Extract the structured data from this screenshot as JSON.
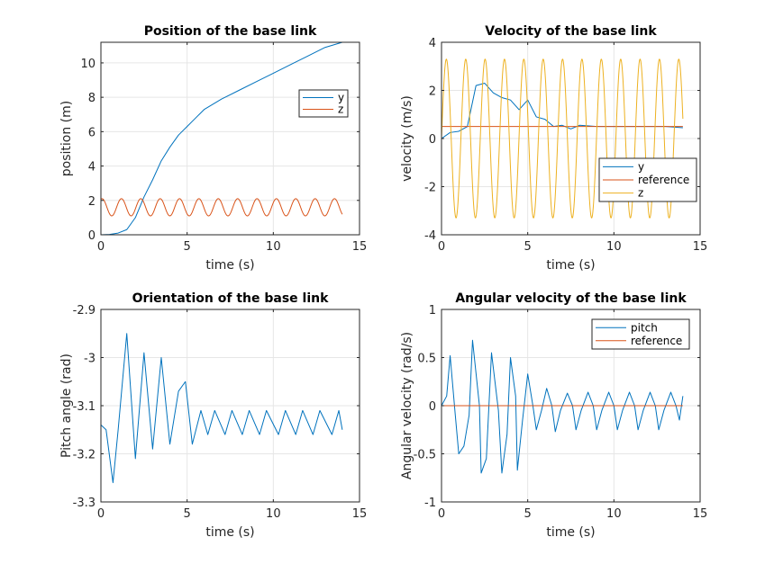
{
  "colors": {
    "blue": "#0072BD",
    "orange": "#D95319",
    "yellow": "#EDB120",
    "grid": "#e6e6e6",
    "axis": "#262626"
  },
  "chart_data": [
    {
      "type": "line",
      "title": "Position of the base link",
      "xlabel": "time (s)",
      "ylabel": "position (m)",
      "xlim": [
        0,
        15
      ],
      "ylim": [
        0,
        11.2
      ],
      "xticks": [
        0,
        5,
        10,
        15
      ],
      "yticks": [
        0,
        2,
        4,
        6,
        8,
        10
      ],
      "xtick_labels": [
        "0",
        "5",
        "10",
        "15"
      ],
      "ytick_labels": [
        "0",
        "2",
        "4",
        "6",
        "8",
        "10"
      ],
      "grid": true,
      "legend": "right",
      "series": [
        {
          "name": "y",
          "color": "#0072BD",
          "points": [
            [
              0,
              0
            ],
            [
              0.5,
              0.02
            ],
            [
              1,
              0.1
            ],
            [
              1.5,
              0.3
            ],
            [
              2,
              1.0
            ],
            [
              2.5,
              2.2
            ],
            [
              3,
              3.2
            ],
            [
              3.5,
              4.3
            ],
            [
              4,
              5.1
            ],
            [
              4.5,
              5.8
            ],
            [
              5,
              6.3
            ],
            [
              5.5,
              6.8
            ],
            [
              6,
              7.3
            ],
            [
              7,
              7.9
            ],
            [
              8,
              8.4
            ],
            [
              9,
              8.9
            ],
            [
              10,
              9.4
            ],
            [
              11,
              9.9
            ],
            [
              12,
              10.4
            ],
            [
              13,
              10.9
            ],
            [
              14,
              11.2
            ]
          ]
        },
        {
          "name": "z",
          "color": "#D95319",
          "osc": {
            "t0": 0,
            "t1": 14,
            "center": 1.6,
            "amp": 0.5,
            "freq": 0.89,
            "phase": 1.2
          }
        }
      ]
    },
    {
      "type": "line",
      "title": "Velocity of the base link",
      "xlabel": "time (s)",
      "ylabel": "velocity (m/s)",
      "xlim": [
        0,
        15
      ],
      "ylim": [
        -4,
        4
      ],
      "xticks": [
        0,
        5,
        10,
        15
      ],
      "yticks": [
        -4,
        -2,
        0,
        2,
        4
      ],
      "xtick_labels": [
        "0",
        "5",
        "10",
        "15"
      ],
      "ytick_labels": [
        "-4",
        "-2",
        "0",
        "2",
        "4"
      ],
      "grid": true,
      "legend": "lower-right",
      "series": [
        {
          "name": "y",
          "color": "#0072BD",
          "points": [
            [
              0,
              0
            ],
            [
              0.5,
              0.25
            ],
            [
              1,
              0.3
            ],
            [
              1.5,
              0.5
            ],
            [
              2,
              2.2
            ],
            [
              2.5,
              2.3
            ],
            [
              3,
              1.9
            ],
            [
              3.5,
              1.7
            ],
            [
              4,
              1.6
            ],
            [
              4.5,
              1.2
            ],
            [
              5,
              1.6
            ],
            [
              5.5,
              0.9
            ],
            [
              6,
              0.8
            ],
            [
              6.5,
              0.5
            ],
            [
              7,
              0.55
            ],
            [
              7.5,
              0.4
            ],
            [
              8,
              0.55
            ],
            [
              9,
              0.5
            ],
            [
              10,
              0.5
            ],
            [
              11,
              0.5
            ],
            [
              12,
              0.5
            ],
            [
              13,
              0.5
            ],
            [
              14,
              0.45
            ]
          ]
        },
        {
          "name": "reference",
          "color": "#D95319",
          "points": [
            [
              0,
              0.5
            ],
            [
              14,
              0.5
            ]
          ]
        },
        {
          "name": "z",
          "color": "#EDB120",
          "osc": {
            "t0": 0,
            "t1": 14,
            "center": 0,
            "amp": 3.3,
            "freq": 0.89,
            "phase": 0
          }
        }
      ]
    },
    {
      "type": "line",
      "title": "Orientation of the base link",
      "xlabel": "time (s)",
      "ylabel": "Pitch angle (rad)",
      "xlim": [
        0,
        15
      ],
      "ylim": [
        -3.3,
        -2.9
      ],
      "xticks": [
        0,
        5,
        10,
        15
      ],
      "yticks": [
        -3.3,
        -3.2,
        -3.1,
        -3,
        -2.9
      ],
      "xtick_labels": [
        "0",
        "5",
        "10",
        "15"
      ],
      "ytick_labels": [
        "-3.3",
        "-3.2",
        "-3.1",
        "-3",
        "-2.9"
      ],
      "grid": true,
      "legend": "none",
      "series": [
        {
          "name": "",
          "color": "#0072BD",
          "points": [
            [
              0,
              -3.14
            ],
            [
              0.3,
              -3.15
            ],
            [
              0.7,
              -3.26
            ],
            [
              1,
              -3.15
            ],
            [
              1.5,
              -2.95
            ],
            [
              2,
              -3.21
            ],
            [
              2.5,
              -2.99
            ],
            [
              3,
              -3.19
            ],
            [
              3.5,
              -3.0
            ],
            [
              4,
              -3.18
            ],
            [
              4.5,
              -3.07
            ],
            [
              4.9,
              -3.05
            ],
            [
              5.3,
              -3.18
            ],
            [
              5.8,
              -3.11
            ],
            [
              6.2,
              -3.16
            ],
            [
              6.6,
              -3.11
            ],
            [
              7.2,
              -3.16
            ],
            [
              7.6,
              -3.11
            ],
            [
              8.2,
              -3.16
            ],
            [
              8.6,
              -3.11
            ],
            [
              9.2,
              -3.16
            ],
            [
              9.6,
              -3.11
            ],
            [
              10.3,
              -3.16
            ],
            [
              10.7,
              -3.11
            ],
            [
              11.3,
              -3.16
            ],
            [
              11.7,
              -3.11
            ],
            [
              12.3,
              -3.16
            ],
            [
              12.7,
              -3.11
            ],
            [
              13.4,
              -3.16
            ],
            [
              13.8,
              -3.11
            ],
            [
              14,
              -3.15
            ]
          ]
        }
      ]
    },
    {
      "type": "line",
      "title": "Angular velocity of the base link",
      "xlabel": "time (s)",
      "ylabel": "Angular velocity (rad/s)",
      "xlim": [
        0,
        15
      ],
      "ylim": [
        -1,
        1
      ],
      "xticks": [
        0,
        5,
        10,
        15
      ],
      "yticks": [
        -1,
        -0.5,
        0,
        0.5,
        1
      ],
      "xtick_labels": [
        "0",
        "5",
        "10",
        "15"
      ],
      "ytick_labels": [
        "-1",
        "-0.5",
        "0",
        "0.5",
        "1"
      ],
      "grid": true,
      "legend": "top-right",
      "series": [
        {
          "name": "pitch",
          "color": "#0072BD",
          "points": [
            [
              0,
              0
            ],
            [
              0.3,
              0.1
            ],
            [
              0.5,
              0.52
            ],
            [
              0.8,
              -0.1
            ],
            [
              1,
              -0.5
            ],
            [
              1.3,
              -0.42
            ],
            [
              1.6,
              -0.1
            ],
            [
              1.8,
              0.68
            ],
            [
              2.2,
              0.0
            ],
            [
              2.3,
              -0.7
            ],
            [
              2.6,
              -0.55
            ],
            [
              2.9,
              0.55
            ],
            [
              3.3,
              -0.05
            ],
            [
              3.5,
              -0.7
            ],
            [
              3.8,
              -0.3
            ],
            [
              4,
              0.5
            ],
            [
              4.3,
              0.1
            ],
            [
              4.4,
              -0.67
            ],
            [
              4.7,
              -0.15
            ],
            [
              5,
              0.33
            ],
            [
              5.3,
              0.0
            ],
            [
              5.5,
              -0.25
            ],
            [
              5.8,
              -0.05
            ],
            [
              6.1,
              0.18
            ],
            [
              6.4,
              0.0
            ],
            [
              6.6,
              -0.27
            ],
            [
              6.9,
              -0.05
            ],
            [
              7.3,
              0.13
            ],
            [
              7.6,
              0.0
            ],
            [
              7.8,
              -0.25
            ],
            [
              8.1,
              -0.05
            ],
            [
              8.5,
              0.14
            ],
            [
              8.8,
              0.0
            ],
            [
              9.0,
              -0.25
            ],
            [
              9.3,
              -0.05
            ],
            [
              9.7,
              0.14
            ],
            [
              10.0,
              0.0
            ],
            [
              10.2,
              -0.25
            ],
            [
              10.5,
              -0.05
            ],
            [
              10.9,
              0.14
            ],
            [
              11.2,
              0.0
            ],
            [
              11.4,
              -0.25
            ],
            [
              11.7,
              -0.05
            ],
            [
              12.1,
              0.14
            ],
            [
              12.4,
              0.0
            ],
            [
              12.6,
              -0.25
            ],
            [
              12.9,
              -0.05
            ],
            [
              13.3,
              0.14
            ],
            [
              13.6,
              0.0
            ],
            [
              13.8,
              -0.15
            ],
            [
              14,
              0.1
            ]
          ]
        },
        {
          "name": "reference",
          "color": "#D95319",
          "points": [
            [
              0,
              0
            ],
            [
              14,
              0
            ]
          ]
        }
      ]
    }
  ]
}
